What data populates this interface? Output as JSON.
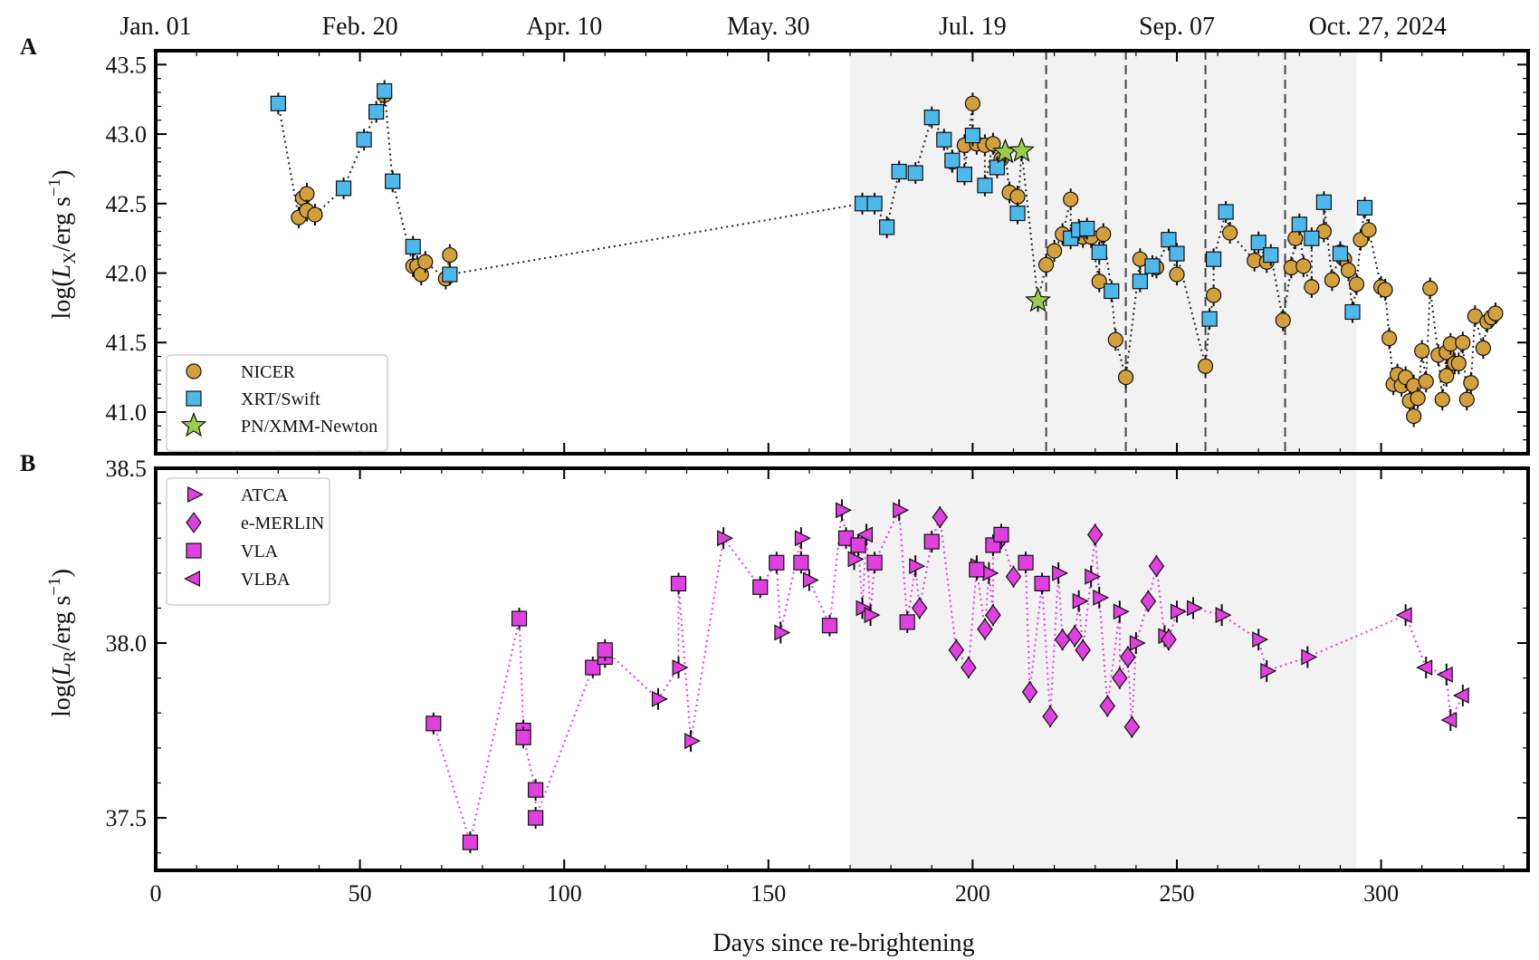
{
  "figure": {
    "panel_a_label": "A",
    "panel_b_label": "B",
    "xlabel": "Days since re-brightening",
    "top_axis_dates": [
      "Jan. 01",
      "Feb. 20",
      "Apr. 10",
      "May. 30",
      "Jul. 19",
      "Sep. 07",
      "Oct. 27, 2024"
    ],
    "top_axis_date_days": [
      0,
      50,
      100,
      150,
      200,
      250,
      300
    ]
  },
  "chart_data": [
    {
      "type": "scatter",
      "panel": "A",
      "title": "",
      "ylabel": "log(L_X/erg s^-1)",
      "ylim": [
        40.7,
        43.6
      ],
      "xlim": [
        0,
        336
      ],
      "yticks": [
        41.0,
        41.5,
        42.0,
        42.5,
        43.0,
        43.5
      ],
      "shaded_region": [
        170,
        294
      ],
      "vlines": [
        218,
        237.5,
        257,
        276.5
      ],
      "legend": [
        "NICER",
        "XRT/Swift",
        "PN/XMM-Newton"
      ],
      "legend_position": "bottom-left",
      "colors": {
        "NICER": "#d4a03c",
        "XRT/Swift": "#4db8ec",
        "PN/XMM-Newton": "#9acd4a"
      },
      "series": [
        {
          "name": "NICER",
          "marker": "circle",
          "points": [
            [
              35,
              42.4
            ],
            [
              36,
              42.54
            ],
            [
              37,
              42.57
            ],
            [
              37,
              42.45
            ],
            [
              39,
              42.42
            ],
            [
              56,
              43.28
            ],
            [
              63,
              42.05
            ],
            [
              64,
              42.05
            ],
            [
              65,
              41.99
            ],
            [
              66,
              42.08
            ],
            [
              71,
              41.96
            ],
            [
              72,
              42.13
            ],
            [
              195,
              42.8
            ],
            [
              198,
              42.92
            ],
            [
              200,
              43.22
            ],
            [
              201,
              42.93
            ],
            [
              203,
              42.92
            ],
            [
              205,
              42.93
            ],
            [
              207,
              42.82
            ],
            [
              209,
              42.58
            ],
            [
              211,
              42.55
            ],
            [
              218,
              42.06
            ],
            [
              220,
              42.16
            ],
            [
              222,
              42.28
            ],
            [
              224,
              42.53
            ],
            [
              227,
              42.26
            ],
            [
              229,
              42.26
            ],
            [
              231,
              41.94
            ],
            [
              232,
              42.28
            ],
            [
              235,
              41.52
            ],
            [
              237.5,
              41.25
            ],
            [
              241,
              42.1
            ],
            [
              245,
              42.04
            ],
            [
              250,
              41.99
            ],
            [
              257,
              41.33
            ],
            [
              259,
              41.84
            ],
            [
              263,
              42.29
            ],
            [
              269,
              42.09
            ],
            [
              272,
              42.08
            ],
            [
              276,
              41.66
            ],
            [
              278,
              42.04
            ],
            [
              279,
              42.25
            ],
            [
              281,
              42.05
            ],
            [
              283,
              41.9
            ],
            [
              286,
              42.3
            ],
            [
              288,
              41.95
            ],
            [
              290,
              42.15
            ],
            [
              291,
              42.1
            ],
            [
              292,
              42.02
            ],
            [
              294,
              41.92
            ],
            [
              295,
              42.24
            ],
            [
              297,
              42.31
            ],
            [
              300,
              41.9
            ],
            [
              301,
              41.88
            ],
            [
              302,
              41.53
            ],
            [
              303,
              41.2
            ],
            [
              304,
              41.27
            ],
            [
              305,
              41.19
            ],
            [
              306,
              41.25
            ],
            [
              307,
              41.08
            ],
            [
              308,
              40.97
            ],
            [
              308,
              41.19
            ],
            [
              309,
              41.1
            ],
            [
              310,
              41.44
            ],
            [
              311,
              41.22
            ],
            [
              312,
              41.89
            ],
            [
              314,
              41.41
            ],
            [
              315,
              41.09
            ],
            [
              316,
              41.43
            ],
            [
              316,
              41.26
            ],
            [
              317,
              41.49
            ],
            [
              318,
              41.35
            ],
            [
              319,
              41.35
            ],
            [
              320,
              41.5
            ],
            [
              321,
              41.09
            ],
            [
              322,
              41.21
            ],
            [
              323,
              41.69
            ],
            [
              325,
              41.46
            ],
            [
              326,
              41.65
            ],
            [
              327,
              41.68
            ],
            [
              328,
              41.71
            ]
          ]
        },
        {
          "name": "XRT/Swift",
          "marker": "square",
          "points": [
            [
              30,
              43.22
            ],
            [
              46,
              42.61
            ],
            [
              51,
              42.96
            ],
            [
              54,
              43.16
            ],
            [
              56,
              43.31
            ],
            [
              58,
              42.66
            ],
            [
              63,
              42.19
            ],
            [
              72,
              41.99
            ],
            [
              173,
              42.5
            ],
            [
              176,
              42.5
            ],
            [
              179,
              42.33
            ],
            [
              182,
              42.73
            ],
            [
              186,
              42.72
            ],
            [
              190,
              43.12
            ],
            [
              193,
              42.96
            ],
            [
              195,
              42.81
            ],
            [
              198,
              42.71
            ],
            [
              200,
              42.99
            ],
            [
              203,
              42.63
            ],
            [
              206,
              42.76
            ],
            [
              211,
              42.43
            ],
            [
              224,
              42.25
            ],
            [
              226,
              42.31
            ],
            [
              228,
              42.32
            ],
            [
              231,
              42.15
            ],
            [
              234,
              41.87
            ],
            [
              241,
              41.94
            ],
            [
              244,
              42.05
            ],
            [
              248,
              42.24
            ],
            [
              250,
              42.14
            ],
            [
              258,
              41.67
            ],
            [
              259,
              42.1
            ],
            [
              262,
              42.44
            ],
            [
              270,
              42.22
            ],
            [
              273,
              42.13
            ],
            [
              280,
              42.35
            ],
            [
              283,
              42.25
            ],
            [
              286,
              42.51
            ],
            [
              290,
              42.14
            ],
            [
              293,
              41.72
            ],
            [
              296,
              42.47
            ]
          ]
        },
        {
          "name": "PN/XMM-Newton",
          "marker": "star",
          "points": [
            [
              208,
              42.87
            ],
            [
              212,
              42.88
            ],
            [
              216,
              41.8
            ]
          ]
        }
      ]
    },
    {
      "type": "scatter",
      "panel": "B",
      "title": "",
      "ylabel": "log(L_R/erg s^-1)",
      "ylim": [
        37.35,
        38.5
      ],
      "xlim": [
        0,
        336
      ],
      "yticks": [
        37.5,
        38.0,
        38.5
      ],
      "xticks": [
        0,
        50,
        100,
        150,
        200,
        250,
        300
      ],
      "shaded_region": [
        170,
        294
      ],
      "legend": [
        "ATCA",
        "e-MERLIN",
        "VLA",
        "VLBA"
      ],
      "legend_position": "top-left",
      "colors": {
        "marker": "#e040e0",
        "line": "#e040e0"
      },
      "series": [
        {
          "name": "ATCA",
          "marker": "triangle-right",
          "points": [
            [
              123,
              37.84
            ],
            [
              128,
              37.93
            ],
            [
              131,
              37.72
            ],
            [
              139,
              38.3
            ],
            [
              153,
              38.03
            ],
            [
              158,
              38.3
            ],
            [
              160,
              38.18
            ],
            [
              168,
              38.38
            ],
            [
              171,
              38.24
            ],
            [
              173,
              38.1
            ],
            [
              175,
              38.08
            ],
            [
              182,
              38.38
            ],
            [
              186,
              38.22
            ],
            [
              201,
              38.22
            ],
            [
              204,
              38.2
            ],
            [
              221,
              38.2
            ],
            [
              226,
              38.12
            ],
            [
              229,
              38.19
            ],
            [
              231,
              38.13
            ],
            [
              236,
              38.09
            ],
            [
              240,
              38.0
            ],
            [
              247,
              38.02
            ],
            [
              250,
              38.09
            ],
            [
              254,
              38.1
            ],
            [
              261,
              38.08
            ],
            [
              270,
              38.01
            ],
            [
              272,
              37.92
            ],
            [
              282,
              37.96
            ]
          ]
        },
        {
          "name": "e-MERLIN",
          "marker": "diamond",
          "points": [
            [
              187,
              38.1
            ],
            [
              192,
              38.36
            ],
            [
              196,
              37.98
            ],
            [
              199,
              37.93
            ],
            [
              203,
              38.04
            ],
            [
              205,
              38.08
            ],
            [
              207,
              38.3
            ],
            [
              210,
              38.19
            ],
            [
              214,
              37.86
            ],
            [
              219,
              37.79
            ],
            [
              222,
              38.01
            ],
            [
              225,
              38.02
            ],
            [
              227,
              37.98
            ],
            [
              230,
              38.31
            ],
            [
              233,
              37.82
            ],
            [
              236,
              37.9
            ],
            [
              238,
              37.96
            ],
            [
              239,
              37.76
            ],
            [
              243,
              38.12
            ],
            [
              245,
              38.22
            ],
            [
              248,
              38.01
            ]
          ]
        },
        {
          "name": "VLA",
          "marker": "square",
          "points": [
            [
              68,
              37.77
            ],
            [
              77,
              37.43
            ],
            [
              89,
              38.07
            ],
            [
              90,
              37.75
            ],
            [
              90,
              37.73
            ],
            [
              93,
              37.58
            ],
            [
              93,
              37.5
            ],
            [
              107,
              37.93
            ],
            [
              110,
              37.96
            ],
            [
              110,
              37.98
            ],
            [
              128,
              38.17
            ],
            [
              148,
              38.16
            ],
            [
              152,
              38.23
            ],
            [
              158,
              38.23
            ],
            [
              165,
              38.05
            ],
            [
              169,
              38.3
            ],
            [
              172,
              38.28
            ],
            [
              176,
              38.23
            ],
            [
              184,
              38.06
            ],
            [
              190,
              38.29
            ],
            [
              201,
              38.21
            ],
            [
              205,
              38.28
            ],
            [
              207,
              38.31
            ],
            [
              213,
              38.23
            ],
            [
              217,
              38.17
            ]
          ]
        },
        {
          "name": "VLBA",
          "marker": "triangle-left",
          "points": [
            [
              174,
              38.31
            ],
            [
              306,
              38.08
            ],
            [
              311,
              37.93
            ],
            [
              316,
              37.91
            ],
            [
              317,
              37.78
            ],
            [
              320,
              37.85
            ]
          ]
        }
      ]
    }
  ]
}
